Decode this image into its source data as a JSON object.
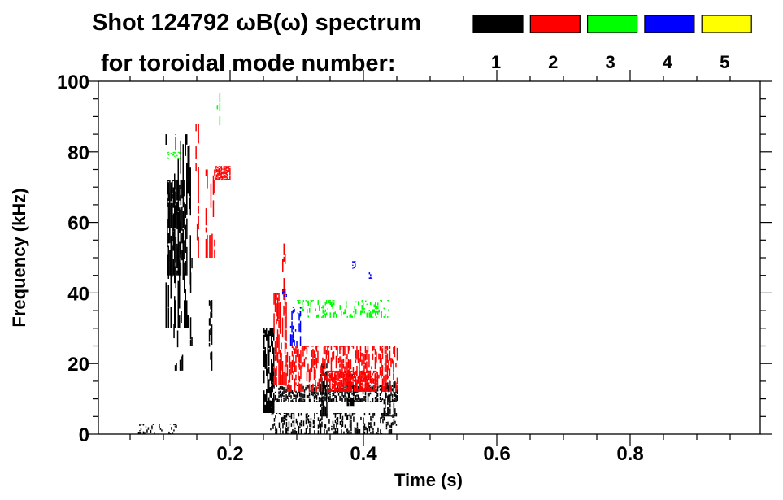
{
  "chart_data": {
    "type": "heatmap",
    "title": "Shot 124792 ωB(ω) spectrum",
    "subtitle": "for toroidal mode number:",
    "xlabel": "Time (s)",
    "ylabel": "Frequency (kHz)",
    "xlim": [
      0,
      1.0
    ],
    "ylim": [
      0,
      100
    ],
    "xticks": [
      0.2,
      0.4,
      0.6,
      0.8
    ],
    "xtick_labels": [
      "0.2",
      "0.4",
      "0.6",
      "0.8"
    ],
    "x_minor_step": 0.05,
    "yticks": [
      0,
      20,
      40,
      60,
      80,
      100
    ],
    "ytick_labels": [
      "0",
      "20",
      "40",
      "60",
      "80",
      "100"
    ],
    "y_minor_step": 5,
    "grid": false,
    "legend_position": "top-right",
    "legend": [
      {
        "mode": "1",
        "color": "#000000"
      },
      {
        "mode": "2",
        "color": "#ff0000"
      },
      {
        "mode": "3",
        "color": "#00ff00"
      },
      {
        "mode": "4",
        "color": "#0000ff"
      },
      {
        "mode": "5",
        "color": "#ffff00"
      }
    ],
    "regions": [
      {
        "mode": 1,
        "t": [
          0.105,
          0.135
        ],
        "f": [
          45,
          72
        ],
        "density": 0.95
      },
      {
        "mode": 1,
        "t": [
          0.103,
          0.14
        ],
        "f": [
          30,
          85
        ],
        "density": 0.45
      },
      {
        "mode": 1,
        "t": [
          0.115,
          0.13
        ],
        "f": [
          18,
          35
        ],
        "density": 0.2
      },
      {
        "mode": 1,
        "t": [
          0.14,
          0.143
        ],
        "f": [
          25,
          50
        ],
        "density": 0.6
      },
      {
        "mode": 1,
        "t": [
          0.168,
          0.172
        ],
        "f": [
          18,
          38
        ],
        "density": 0.6
      },
      {
        "mode": 1,
        "t": [
          0.06,
          0.12
        ],
        "f": [
          0,
          3
        ],
        "density": 0.25
      },
      {
        "mode": 1,
        "t": [
          0.25,
          0.265
        ],
        "f": [
          6,
          30
        ],
        "density": 0.9
      },
      {
        "mode": 1,
        "t": [
          0.265,
          0.45
        ],
        "f": [
          9,
          14
        ],
        "density": 0.7
      },
      {
        "mode": 1,
        "t": [
          0.26,
          0.45
        ],
        "f": [
          0,
          6
        ],
        "density": 0.4
      },
      {
        "mode": 1,
        "t": [
          0.335,
          0.345
        ],
        "f": [
          5,
          20
        ],
        "density": 0.8
      },
      {
        "mode": 1,
        "t": [
          0.375,
          0.385
        ],
        "f": [
          8,
          17
        ],
        "density": 0.7
      },
      {
        "mode": 1,
        "t": [
          0.43,
          0.45
        ],
        "f": [
          5,
          15
        ],
        "density": 0.5
      },
      {
        "mode": 2,
        "t": [
          0.148,
          0.152
        ],
        "f": [
          50,
          88
        ],
        "density": 0.5
      },
      {
        "mode": 2,
        "t": [
          0.163,
          0.176
        ],
        "f": [
          50,
          75
        ],
        "density": 0.5
      },
      {
        "mode": 2,
        "t": [
          0.177,
          0.2
        ],
        "f": [
          72,
          76
        ],
        "density": 0.85
      },
      {
        "mode": 2,
        "t": [
          0.265,
          0.285
        ],
        "f": [
          14,
          40
        ],
        "density": 0.75
      },
      {
        "mode": 2,
        "t": [
          0.285,
          0.45
        ],
        "f": [
          12,
          25
        ],
        "density": 0.55
      },
      {
        "mode": 2,
        "t": [
          0.345,
          0.42
        ],
        "f": [
          12,
          18
        ],
        "density": 0.85
      },
      {
        "mode": 2,
        "t": [
          0.278,
          0.282
        ],
        "f": [
          38,
          54
        ],
        "density": 0.5
      },
      {
        "mode": 3,
        "t": [
          0.18,
          0.19
        ],
        "f": [
          85,
          97
        ],
        "density": 0.3
      },
      {
        "mode": 3,
        "t": [
          0.3,
          0.44
        ],
        "f": [
          33,
          38
        ],
        "density": 0.3
      },
      {
        "mode": 3,
        "t": [
          0.105,
          0.125
        ],
        "f": [
          78,
          80
        ],
        "density": 0.4
      },
      {
        "mode": 4,
        "t": [
          0.29,
          0.305
        ],
        "f": [
          25,
          36
        ],
        "density": 0.5
      },
      {
        "mode": 4,
        "t": [
          0.383,
          0.387
        ],
        "f": [
          47,
          49
        ],
        "density": 0.6
      },
      {
        "mode": 4,
        "t": [
          0.408,
          0.412
        ],
        "f": [
          44,
          46
        ],
        "density": 0.6
      },
      {
        "mode": 4,
        "t": [
          0.278,
          0.285
        ],
        "f": [
          39,
          41
        ],
        "density": 0.5
      }
    ]
  }
}
